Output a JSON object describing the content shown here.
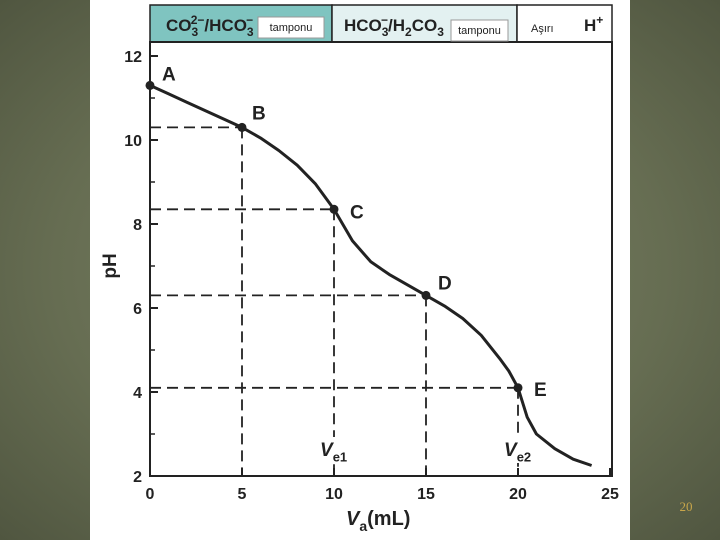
{
  "page_number": "20",
  "header": [
    {
      "pieces": [
        {
          "t": "CO"
        },
        {
          "t": "3",
          "pos": "sub"
        },
        {
          "t": "2−",
          "pos": "sup"
        },
        {
          "t": "/HCO"
        },
        {
          "t": "3",
          "pos": "sub"
        },
        {
          "t": "−",
          "pos": "sup"
        }
      ],
      "note": "tamponu",
      "note_boxed": true
    },
    {
      "pieces": [
        {
          "t": "HCO"
        },
        {
          "t": "3",
          "pos": "sub"
        },
        {
          "t": "−",
          "pos": "sup"
        },
        {
          "t": "/H"
        },
        {
          "t": "2",
          "pos": "sub"
        },
        {
          "t": "CO"
        },
        {
          "t": "3",
          "pos": "sub"
        }
      ],
      "note": "tamponu",
      "note_boxed": true
    },
    {
      "pieces": [
        {
          "t": "H"
        },
        {
          "t": "+",
          "pos": "sup"
        }
      ],
      "note": "Aşırı",
      "note_boxed": false
    }
  ],
  "chart_data": {
    "type": "line",
    "color": "#222222",
    "x": [
      0,
      1,
      2,
      3,
      4,
      5,
      6,
      7,
      8,
      9,
      10,
      11,
      12,
      13,
      14,
      15,
      16,
      17,
      18,
      19,
      19.5,
      20,
      20.5,
      21,
      22,
      23,
      24
    ],
    "values": [
      11.3,
      11.1,
      10.9,
      10.7,
      10.5,
      10.3,
      10.05,
      9.75,
      9.4,
      8.95,
      8.35,
      7.6,
      7.1,
      6.8,
      6.55,
      6.3,
      6.05,
      5.75,
      5.35,
      4.8,
      4.5,
      4.1,
      3.4,
      3.0,
      2.65,
      2.4,
      2.25
    ],
    "xlim": [
      0,
      25
    ],
    "ylim": [
      2,
      12
    ],
    "xticks": [
      0,
      5,
      10,
      15,
      20,
      25
    ],
    "yticks": [
      2,
      4,
      6,
      8,
      10,
      12
    ],
    "yminor": [
      3,
      5,
      7,
      9,
      11
    ],
    "ylabel": "pH",
    "xlabel": [
      {
        "t": "V"
      },
      {
        "t": "a",
        "pos": "sub"
      },
      {
        "t": "(mL)"
      }
    ],
    "points": [
      {
        "label": "A",
        "x": 0,
        "y": 11.3,
        "guide": false
      },
      {
        "label": "B",
        "x": 5,
        "y": 10.3,
        "guide": true
      },
      {
        "label": "C",
        "x": 10,
        "y": 8.35,
        "guide": true
      },
      {
        "label": "D",
        "x": 15,
        "y": 6.3,
        "guide": true
      },
      {
        "label": "E",
        "x": 20,
        "y": 4.1,
        "guide": true
      }
    ],
    "equivalence_labels": [
      {
        "point": 2,
        "pieces": [
          {
            "t": "V"
          },
          {
            "t": "e1",
            "pos": "sub"
          }
        ]
      },
      {
        "point": 4,
        "pieces": [
          {
            "t": "V"
          },
          {
            "t": "e2",
            "pos": "sub"
          }
        ]
      }
    ]
  }
}
